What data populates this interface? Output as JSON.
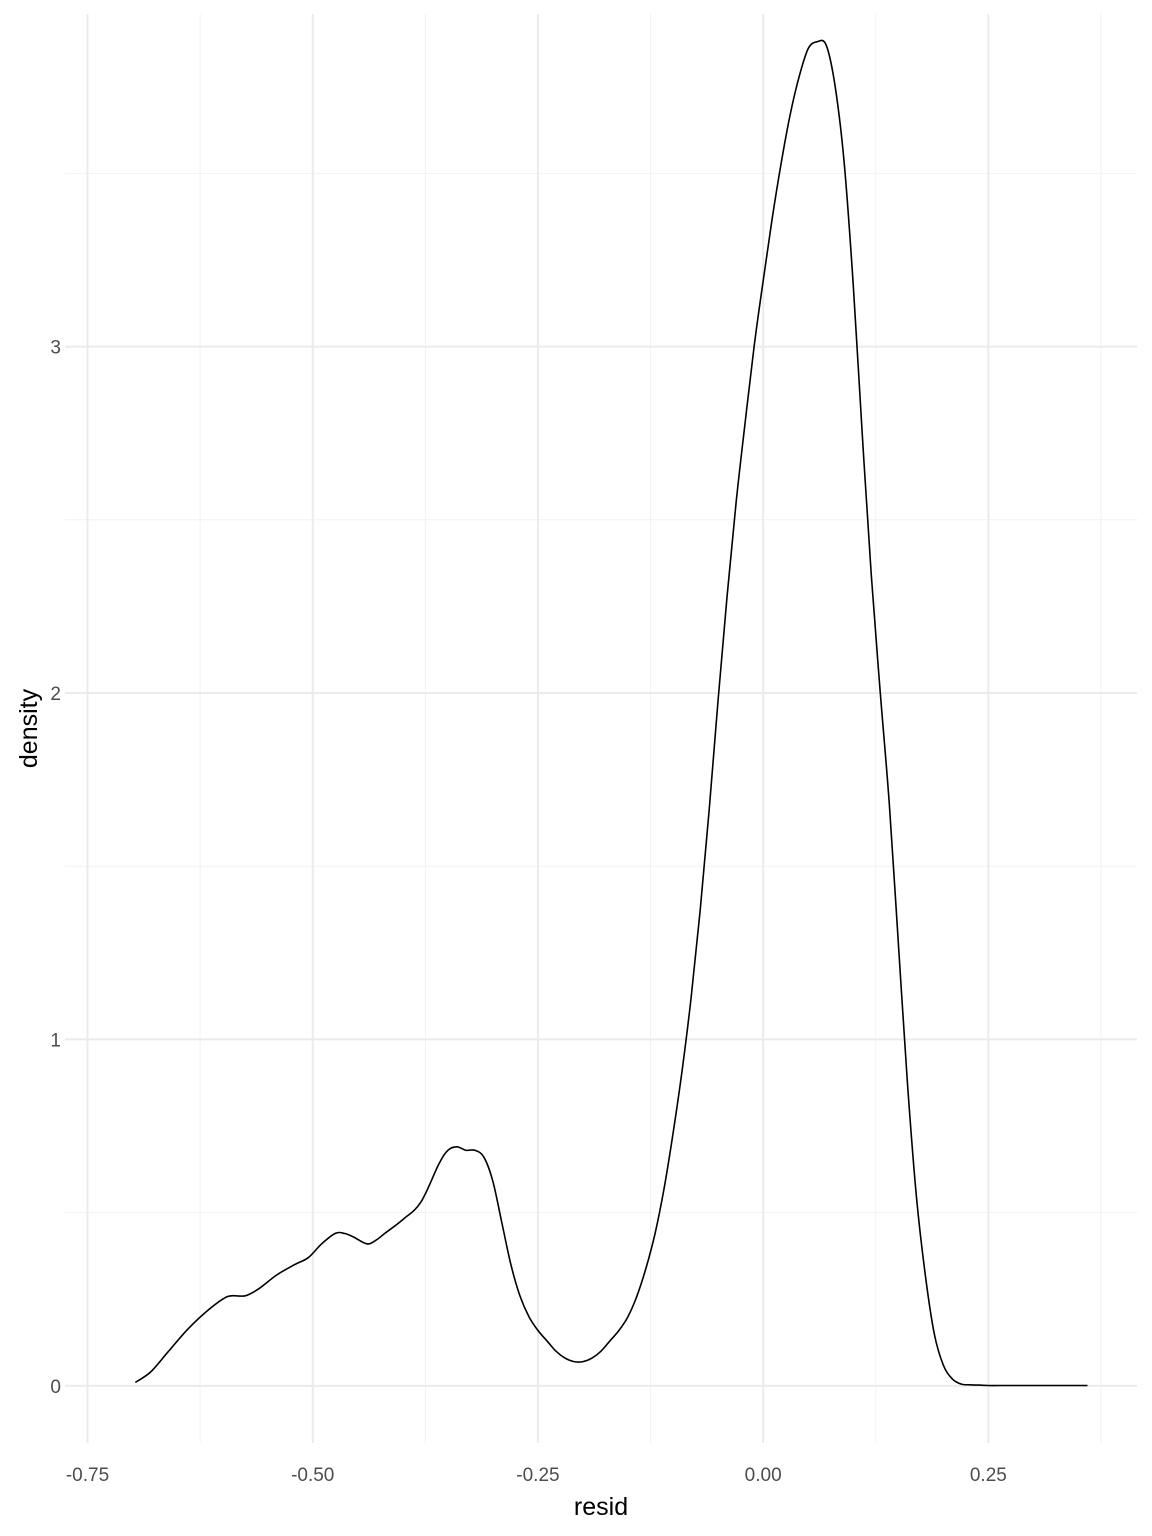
{
  "chart_data": {
    "type": "line",
    "title": "",
    "xlabel": "resid",
    "ylabel": "density",
    "xlim": [
      -0.775,
      0.415
    ],
    "ylim": [
      -0.165,
      3.96
    ],
    "x_ticks": [
      -0.75,
      -0.5,
      -0.25,
      0.0,
      0.25
    ],
    "x_tick_labels": [
      "-0.75",
      "-0.50",
      "-0.25",
      "0.00",
      "0.25"
    ],
    "x_minor_ticks": [
      -0.625,
      -0.375,
      -0.125,
      0.125,
      0.375
    ],
    "y_ticks": [
      0,
      1,
      2,
      3
    ],
    "y_tick_labels": [
      "0",
      "1",
      "2",
      "3"
    ],
    "y_minor_ticks": [
      0.5,
      1.5,
      2.5,
      3.5
    ],
    "grid": true,
    "legend": "none",
    "line_color": "#000000",
    "series": [
      {
        "x": [
          -0.697,
          -0.68,
          -0.66,
          -0.64,
          -0.62,
          -0.6,
          -0.59,
          -0.575,
          -0.56,
          -0.54,
          -0.52,
          -0.505,
          -0.49,
          -0.475,
          -0.465,
          -0.455,
          -0.44,
          -0.43,
          -0.42,
          -0.4,
          -0.38,
          -0.36,
          -0.35,
          -0.34,
          -0.33,
          -0.32,
          -0.31,
          -0.3,
          -0.29,
          -0.28,
          -0.27,
          -0.26,
          -0.25,
          -0.24,
          -0.23,
          -0.22,
          -0.21,
          -0.2,
          -0.19,
          -0.18,
          -0.17,
          -0.16,
          -0.15,
          -0.14,
          -0.13,
          -0.12,
          -0.11,
          -0.1,
          -0.09,
          -0.08,
          -0.07,
          -0.06,
          -0.05,
          -0.04,
          -0.03,
          -0.02,
          -0.01,
          0.0,
          0.01,
          0.02,
          0.03,
          0.04,
          0.05,
          0.06,
          0.07,
          0.08,
          0.09,
          0.1,
          0.11,
          0.12,
          0.13,
          0.14,
          0.15,
          0.16,
          0.17,
          0.18,
          0.19,
          0.2,
          0.21,
          0.22,
          0.23,
          0.24,
          0.25,
          0.26,
          0.27,
          0.28,
          0.29,
          0.3,
          0.31,
          0.33,
          0.35,
          0.36
        ],
        "y": [
          0.01,
          0.04,
          0.1,
          0.16,
          0.21,
          0.25,
          0.26,
          0.26,
          0.28,
          0.32,
          0.35,
          0.37,
          0.41,
          0.44,
          0.44,
          0.43,
          0.41,
          0.42,
          0.44,
          0.48,
          0.53,
          0.64,
          0.68,
          0.69,
          0.68,
          0.68,
          0.66,
          0.59,
          0.47,
          0.35,
          0.26,
          0.2,
          0.16,
          0.13,
          0.1,
          0.08,
          0.07,
          0.07,
          0.08,
          0.1,
          0.13,
          0.16,
          0.2,
          0.26,
          0.34,
          0.44,
          0.57,
          0.73,
          0.91,
          1.12,
          1.37,
          1.66,
          1.98,
          2.28,
          2.55,
          2.78,
          3.0,
          3.19,
          3.37,
          3.53,
          3.67,
          3.78,
          3.86,
          3.88,
          3.87,
          3.75,
          3.53,
          3.18,
          2.75,
          2.34,
          2.0,
          1.68,
          1.28,
          0.88,
          0.55,
          0.32,
          0.15,
          0.06,
          0.02,
          0.005,
          0.003,
          0.002,
          0.001,
          0.001,
          0.001,
          0.001,
          0.001,
          0.001,
          0.001,
          0.001,
          0.001,
          0.001
        ]
      }
    ]
  }
}
